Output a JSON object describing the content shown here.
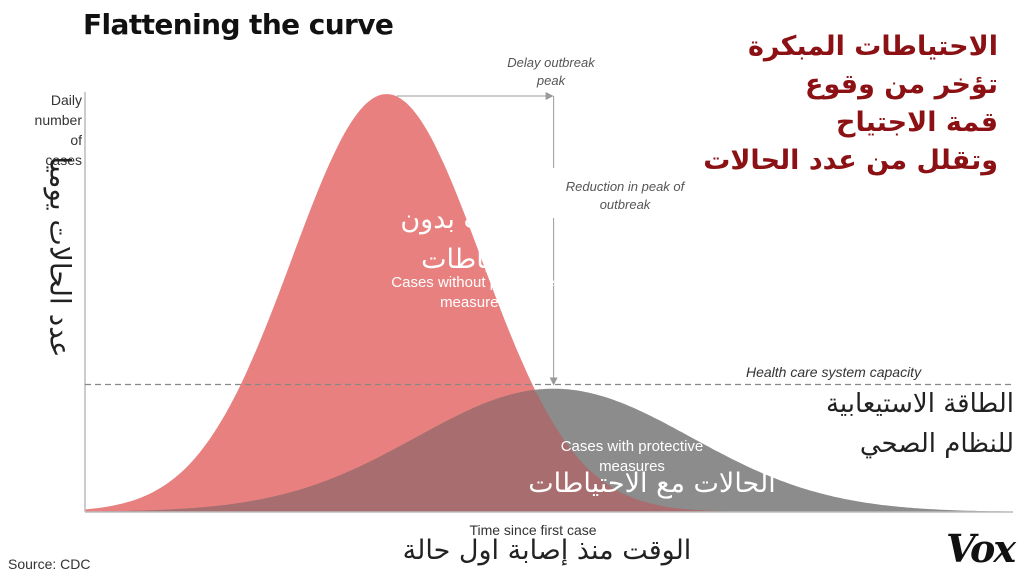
{
  "title": "Flattening the curve",
  "arabic_note": [
    "الاحتياطات المبكرة",
    "تؤخر من وقوع",
    "قمة الاجتياح",
    "وتقلل من عدد الحالات"
  ],
  "source": "Source: CDC",
  "logo": "Vox",
  "colors": {
    "without_measures": "#e88080",
    "with_measures": "#8c8c8c",
    "overlap": "#a86d6e",
    "arabic_note": "#8b1114"
  },
  "chart_data": {
    "type": "area",
    "xlabel": "Time since first case",
    "xlabel_ar": "الوقت منذ إصابة اول حالة",
    "ylabel": "Daily number of cases",
    "ylabel_lines": [
      "Daily",
      "number of",
      "cases"
    ],
    "ylabel_ar": "عدد الحالات يوميا",
    "series": [
      {
        "name": "Cases without protective measures",
        "name_ar": [
          "الحالات بدون",
          "احتياطات"
        ],
        "peak_time": 0.325,
        "peak_value": 1.0,
        "spread": 0.102
      },
      {
        "name": "Cases with protective measures",
        "name_ar": [
          "الحالات مع الاحتياطات"
        ],
        "peak_time": 0.505,
        "peak_value": 0.295,
        "spread": 0.148
      }
    ],
    "capacity": {
      "label": "Health care system capacity",
      "label_ar": [
        "الطاقة الاستيعابية",
        "للنظام الصحي"
      ],
      "value": 0.305
    },
    "annotations": {
      "delay": [
        "Delay outbreak",
        "peak"
      ],
      "reduction": [
        "Reduction in peak of",
        "outbreak"
      ]
    }
  }
}
